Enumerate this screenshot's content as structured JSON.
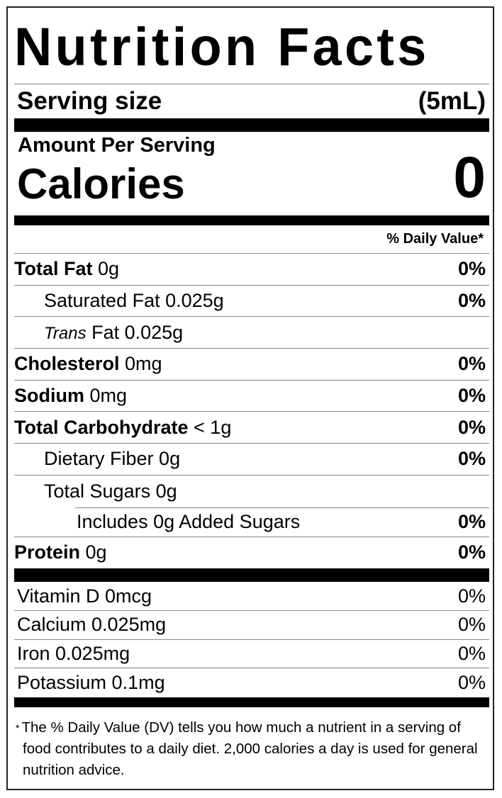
{
  "title": "Nutrition Facts",
  "serving": {
    "label": "Serving size",
    "value": "(5mL)"
  },
  "amount_per_serving": "Amount Per Serving",
  "calories": {
    "label": "Calories",
    "value": "0"
  },
  "dv_header": "% Daily Value*",
  "nutrients": [
    {
      "name": "Total Fat",
      "amount": " 0g",
      "dv": "0%",
      "bold": true
    },
    {
      "name": "Saturated Fat",
      "amount": " 0.025g",
      "dv": "0%"
    },
    {
      "name": "Trans",
      "amount": " Fat 0.025g",
      "dv": ""
    },
    {
      "name": "Cholesterol",
      "amount": " 0mg",
      "dv": "0%",
      "bold": true
    },
    {
      "name": "Sodium",
      "amount": " 0mg",
      "dv": "0%",
      "bold": true
    },
    {
      "name": "Total Carbohydrate",
      "amount": " < 1g",
      "dv": "0%",
      "bold": true
    },
    {
      "name": "Dietary Fiber",
      "amount": " 0g",
      "dv": "0%"
    },
    {
      "name": "Total Sugars",
      "amount": " 0g",
      "dv": ""
    },
    {
      "name": "Includes 0g Added Sugars",
      "amount": "",
      "dv": "0%"
    },
    {
      "name": "Protein",
      "amount": " 0g",
      "dv": "0%",
      "bold": true
    }
  ],
  "vitamins": [
    {
      "label": "Vitamin D 0mcg",
      "dv": "0%"
    },
    {
      "label": "Calcium 0.025mg",
      "dv": "0%"
    },
    {
      "label": "Iron 0.025mg",
      "dv": "0%"
    },
    {
      "label": "Potassium 0.1mg",
      "dv": "0%"
    }
  ],
  "footnote": {
    "asterisk": "*",
    "text": "The % Daily Value (DV) tells you how much a nutrient in a serving of food contributes to a daily diet. 2,000 calories a day is used for general nutrition advice."
  }
}
